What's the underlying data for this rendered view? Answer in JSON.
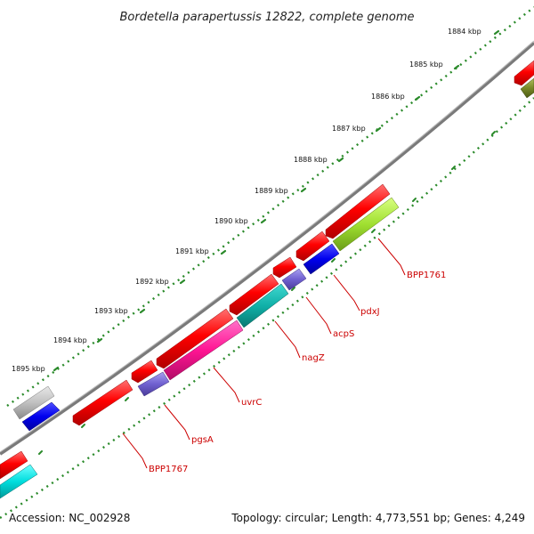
{
  "title": "Bordetella parapertussis 12822, complete genome",
  "accession": "Accession: NC_002928",
  "summary": "Topology: circular; Length: 4,773,551 bp; Genes: 4,249",
  "colors": {
    "backbone": "#808080",
    "ticks": "#2a8a2a",
    "label": "#cc0000"
  },
  "kbp_labels": [
    "1884 kbp",
    "1885 kbp",
    "1886 kbp",
    "1887 kbp",
    "1888 kbp",
    "1889 kbp",
    "1890 kbp",
    "1891 kbp",
    "1892 kbp",
    "1893 kbp",
    "1894 kbp",
    "1895 kbp"
  ],
  "gene_labels": [
    "BPP1761",
    "pdxJ",
    "acpS",
    "nagZ",
    "uvrC",
    "pgsA",
    "BPP1767"
  ]
}
